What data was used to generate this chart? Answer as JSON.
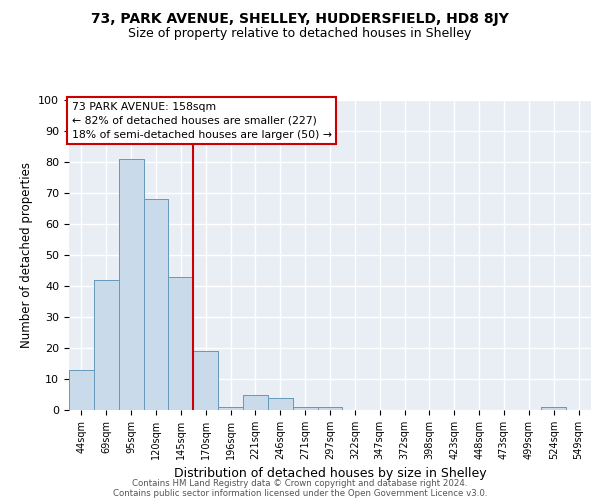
{
  "title": "73, PARK AVENUE, SHELLEY, HUDDERSFIELD, HD8 8JY",
  "subtitle": "Size of property relative to detached houses in Shelley",
  "xlabel": "Distribution of detached houses by size in Shelley",
  "ylabel": "Number of detached properties",
  "bar_labels": [
    "44sqm",
    "69sqm",
    "95sqm",
    "120sqm",
    "145sqm",
    "170sqm",
    "196sqm",
    "221sqm",
    "246sqm",
    "271sqm",
    "297sqm",
    "322sqm",
    "347sqm",
    "372sqm",
    "398sqm",
    "423sqm",
    "448sqm",
    "473sqm",
    "499sqm",
    "524sqm",
    "549sqm"
  ],
  "bar_values": [
    13,
    42,
    81,
    68,
    43,
    19,
    1,
    5,
    4,
    1,
    1,
    0,
    0,
    0,
    0,
    0,
    0,
    0,
    0,
    1,
    0
  ],
  "bar_color": "#c9daea",
  "bar_edge_color": "#6699bb",
  "ylim": [
    0,
    100
  ],
  "yticks": [
    0,
    10,
    20,
    30,
    40,
    50,
    60,
    70,
    80,
    90,
    100
  ],
  "vline_color": "#cc0000",
  "annotation_title": "73 PARK AVENUE: 158sqm",
  "annotation_line1": "← 82% of detached houses are smaller (227)",
  "annotation_line2": "18% of semi-detached houses are larger (50) →",
  "annotation_box_color": "#ffffff",
  "annotation_box_edge": "#cc0000",
  "background_color": "#e8eef4",
  "plot_bg_color": "#e8eef4",
  "grid_color": "#ffffff",
  "footer_line1": "Contains HM Land Registry data © Crown copyright and database right 2024.",
  "footer_line2": "Contains public sector information licensed under the Open Government Licence v3.0."
}
